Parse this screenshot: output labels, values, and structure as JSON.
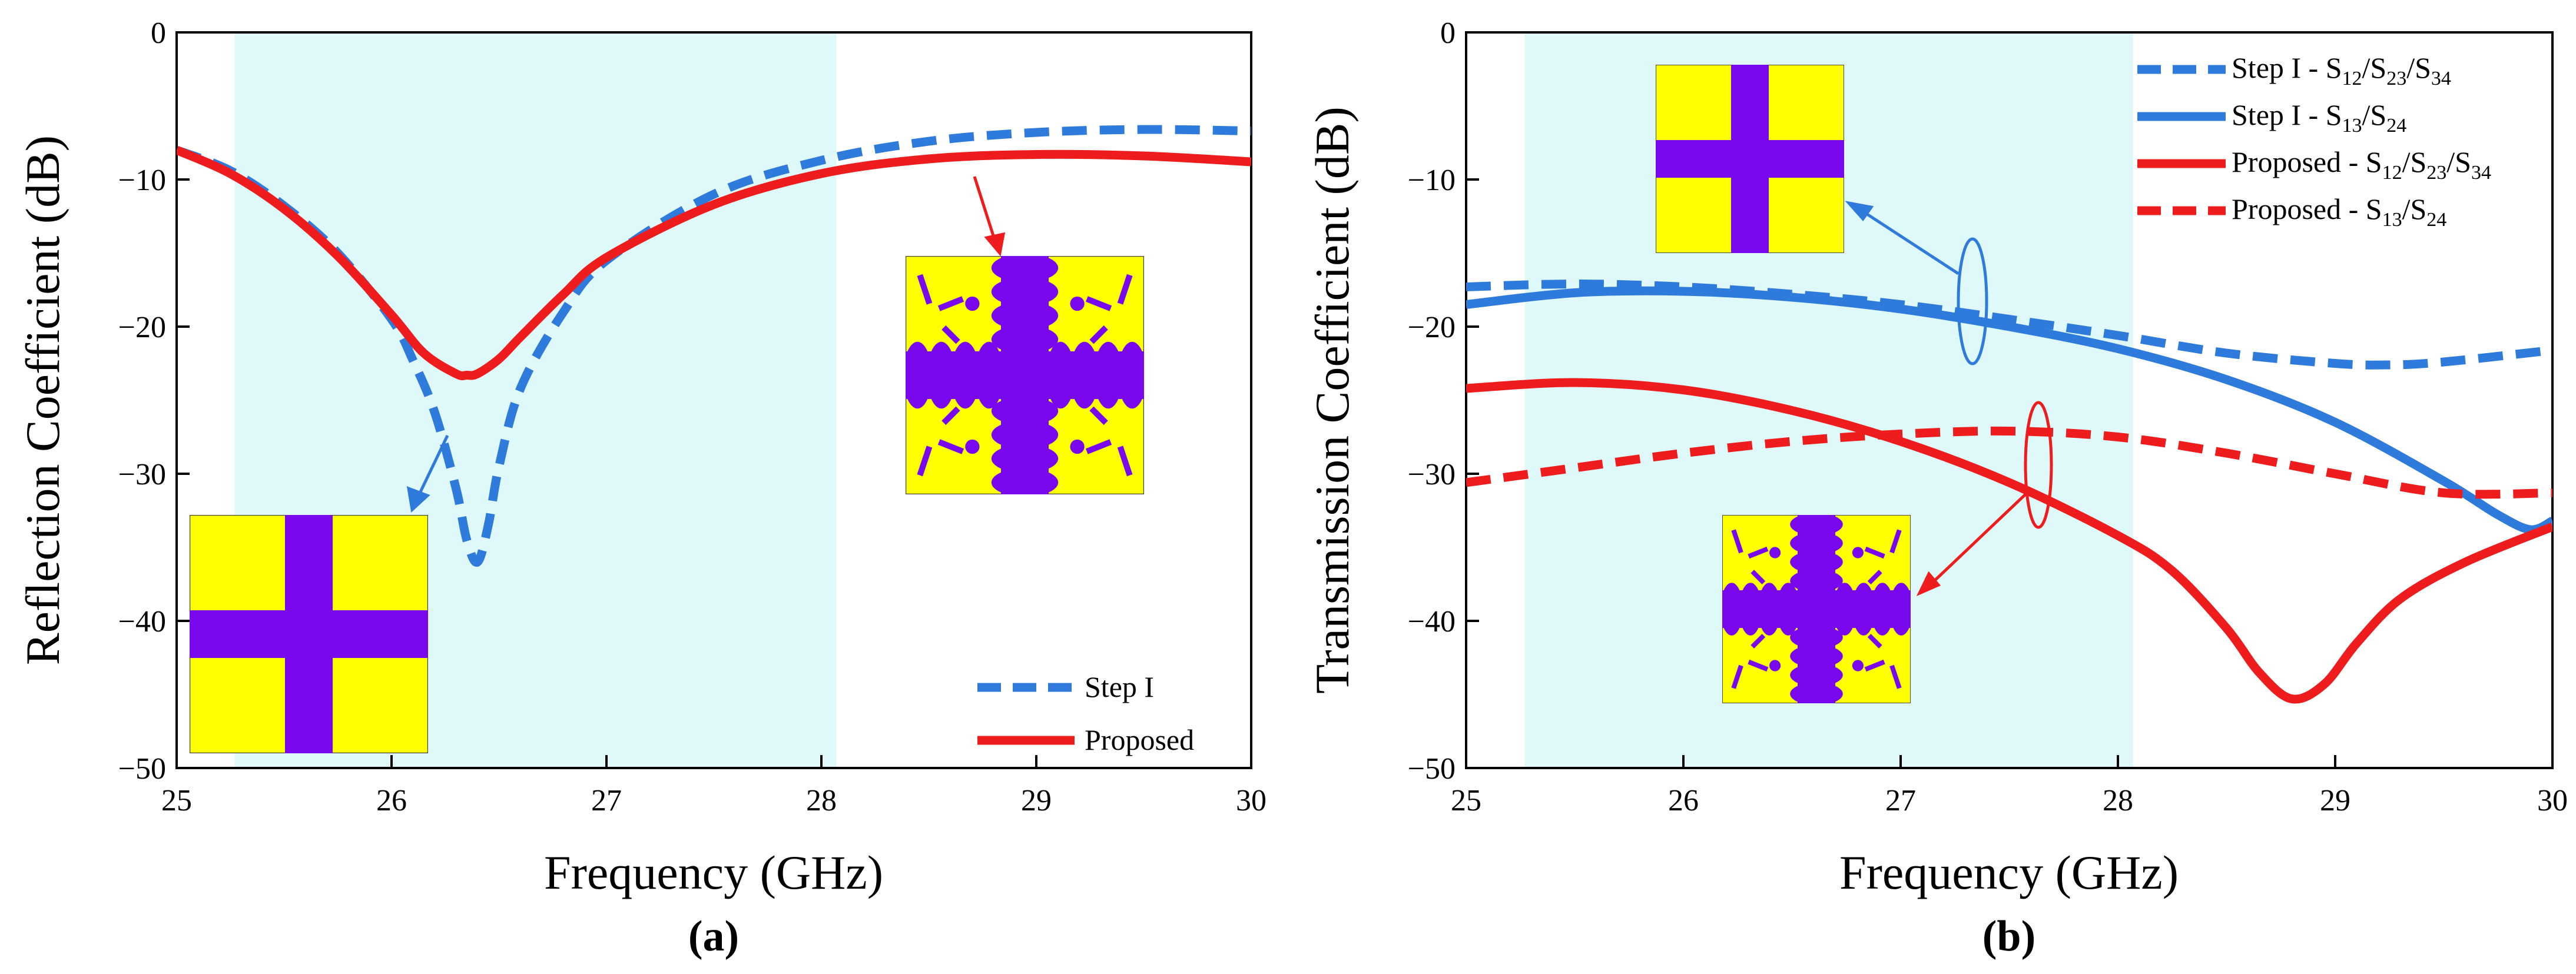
{
  "colors": {
    "blue": "#2f7bdc",
    "red": "#ee1c1c",
    "band": "#dff8f9",
    "patch_yellow": "#ffff00",
    "patch_purple": "#7a08ee"
  },
  "chart_data": [
    {
      "type": "line",
      "panel_label": "(a)",
      "xlabel": "Frequency (GHz)",
      "ylabel": "Reflection Coefficient (dB)",
      "xlim": [
        25,
        30
      ],
      "ylim": [
        -50,
        0
      ],
      "xticks": [
        "25",
        "26",
        "27",
        "28",
        "29",
        "30"
      ],
      "yticks": [
        "0",
        "−10",
        "−20",
        "−30",
        "−40",
        "−50"
      ],
      "shaded_band": [
        25.27,
        28.07
      ],
      "legend_position": "bottom-right",
      "series": [
        {
          "name": "Step I",
          "style": "dashed",
          "color": "#2f7bdc",
          "x": [
            25.0,
            25.25,
            25.5,
            25.75,
            26.0,
            26.1,
            26.2,
            26.3,
            26.35,
            26.4,
            26.45,
            26.5,
            26.6,
            26.8,
            27.0,
            27.5,
            28.0,
            28.5,
            29.0,
            29.5,
            30.0
          ],
          "y": [
            -8.0,
            -9.4,
            -11.8,
            -15.0,
            -19.5,
            -22.3,
            -25.8,
            -31.0,
            -34.5,
            -36.0,
            -33.5,
            -29.5,
            -24.2,
            -19.0,
            -15.5,
            -11.0,
            -8.7,
            -7.4,
            -6.8,
            -6.6,
            -6.7
          ]
        },
        {
          "name": "Proposed",
          "style": "solid",
          "color": "#ee1c1c",
          "x": [
            25.0,
            25.25,
            25.5,
            25.75,
            26.0,
            26.15,
            26.3,
            26.35,
            26.4,
            26.5,
            26.6,
            26.8,
            27.0,
            27.5,
            28.0,
            28.5,
            29.0,
            29.5,
            30.0
          ],
          "y": [
            -8.0,
            -9.6,
            -12.0,
            -15.2,
            -19.2,
            -21.8,
            -23.2,
            -23.3,
            -23.2,
            -22.2,
            -20.7,
            -17.8,
            -15.3,
            -11.7,
            -9.6,
            -8.6,
            -8.3,
            -8.4,
            -8.8
          ]
        }
      ]
    },
    {
      "type": "line",
      "panel_label": "(b)",
      "xlabel": "Frequency (GHz)",
      "ylabel": "Transmission Coefficient (dB)",
      "xlim": [
        25,
        30
      ],
      "ylim": [
        -50,
        0
      ],
      "xticks": [
        "25",
        "26",
        "27",
        "28",
        "29",
        "30"
      ],
      "yticks": [
        "0",
        "−10",
        "−20",
        "−30",
        "−40",
        "−50"
      ],
      "shaded_band": [
        25.27,
        28.07
      ],
      "legend_position": "top-right",
      "series": [
        {
          "name": "Step I - S12/S23/S34",
          "legend_parts": [
            "Step I - S",
            "12",
            "/S",
            "23",
            "/S",
            "34"
          ],
          "style": "dashed",
          "color": "#2f7bdc",
          "x": [
            25.0,
            25.5,
            26.0,
            26.5,
            27.0,
            27.5,
            28.0,
            28.5,
            29.0,
            29.25,
            29.5,
            30.0
          ],
          "y": [
            -17.3,
            -17.1,
            -17.3,
            -17.8,
            -18.5,
            -19.5,
            -20.6,
            -21.8,
            -22.5,
            -22.6,
            -22.4,
            -21.6
          ]
        },
        {
          "name": "Step I - S13/S24",
          "legend_parts": [
            "Step I - S",
            "13",
            "/S",
            "24"
          ],
          "style": "solid",
          "color": "#2f7bdc",
          "x": [
            25.0,
            25.5,
            26.0,
            26.5,
            27.0,
            27.5,
            28.0,
            28.5,
            29.0,
            29.5,
            29.75,
            29.9,
            30.0
          ],
          "y": [
            -18.5,
            -17.7,
            -17.6,
            -18.0,
            -18.8,
            -20.0,
            -21.5,
            -23.6,
            -26.5,
            -30.5,
            -32.8,
            -33.8,
            -33.2
          ]
        },
        {
          "name": "Proposed - S12/S23/S34",
          "legend_parts": [
            "Proposed - S",
            "12",
            "/S",
            "23",
            "/S",
            "34"
          ],
          "style": "solid",
          "color": "#ee1c1c",
          "x": [
            25.0,
            25.5,
            26.0,
            26.5,
            27.0,
            27.5,
            28.0,
            28.25,
            28.5,
            28.65,
            28.8,
            28.95,
            29.1,
            29.3,
            29.6,
            30.0
          ],
          "y": [
            -24.2,
            -23.8,
            -24.3,
            -25.7,
            -27.8,
            -30.6,
            -34.2,
            -36.6,
            -40.5,
            -43.5,
            -45.3,
            -44.3,
            -41.5,
            -38.5,
            -36.0,
            -33.6
          ]
        },
        {
          "name": "Proposed - S13/S24",
          "legend_parts": [
            "Proposed - S",
            "13",
            "/S",
            "24"
          ],
          "style": "dashed",
          "color": "#ee1c1c",
          "x": [
            25.0,
            25.5,
            26.0,
            26.5,
            27.0,
            27.5,
            28.0,
            28.5,
            29.0,
            29.5,
            30.0
          ],
          "y": [
            -30.6,
            -29.6,
            -28.6,
            -27.8,
            -27.3,
            -27.1,
            -27.5,
            -28.6,
            -30.0,
            -31.3,
            -31.3
          ]
        }
      ]
    }
  ]
}
